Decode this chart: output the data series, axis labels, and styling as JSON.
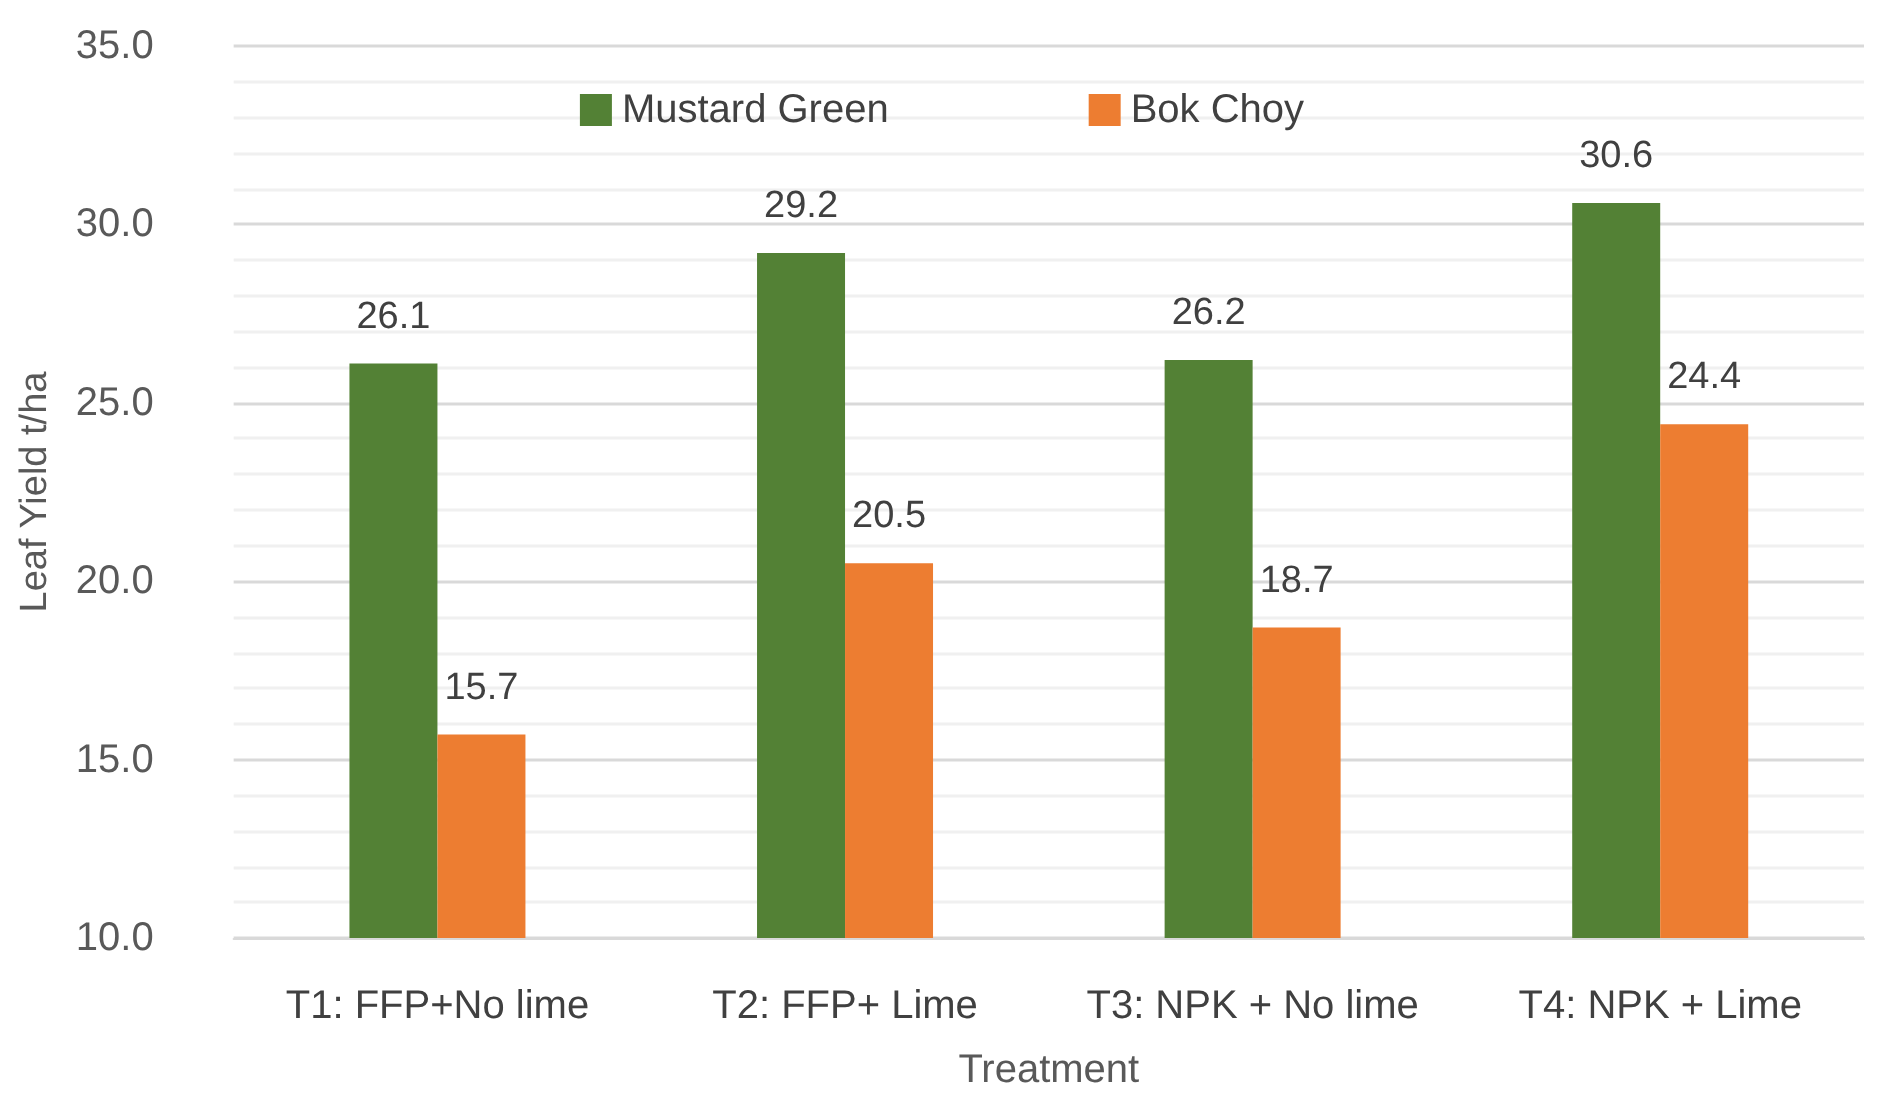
{
  "chart_data": {
    "type": "bar",
    "xlabel": "Treatment",
    "ylabel": "Leaf Yield t/ha",
    "categories": [
      "T1: FFP+No lime",
      "T2: FFP+ Lime",
      "T3: NPK + No lime",
      "T4: NPK + Lime"
    ],
    "series": [
      {
        "name": "Mustard Green",
        "color": "#538135",
        "values": [
          26.1,
          29.2,
          26.2,
          30.6
        ]
      },
      {
        "name": "Bok Choy",
        "color": "#ed7d31",
        "values": [
          15.7,
          20.5,
          18.7,
          24.4
        ]
      }
    ],
    "ylim": [
      10,
      35
    ],
    "yticks": [
      {
        "value": 10,
        "label": "10.0"
      },
      {
        "value": 15,
        "label": "15.0"
      },
      {
        "value": 20,
        "label": "20.0"
      },
      {
        "value": 25,
        "label": "25.0"
      },
      {
        "value": 30,
        "label": "30.0"
      },
      {
        "value": 35,
        "label": "35.0"
      }
    ],
    "grid": "y",
    "legend": "top",
    "data_labels": true
  }
}
